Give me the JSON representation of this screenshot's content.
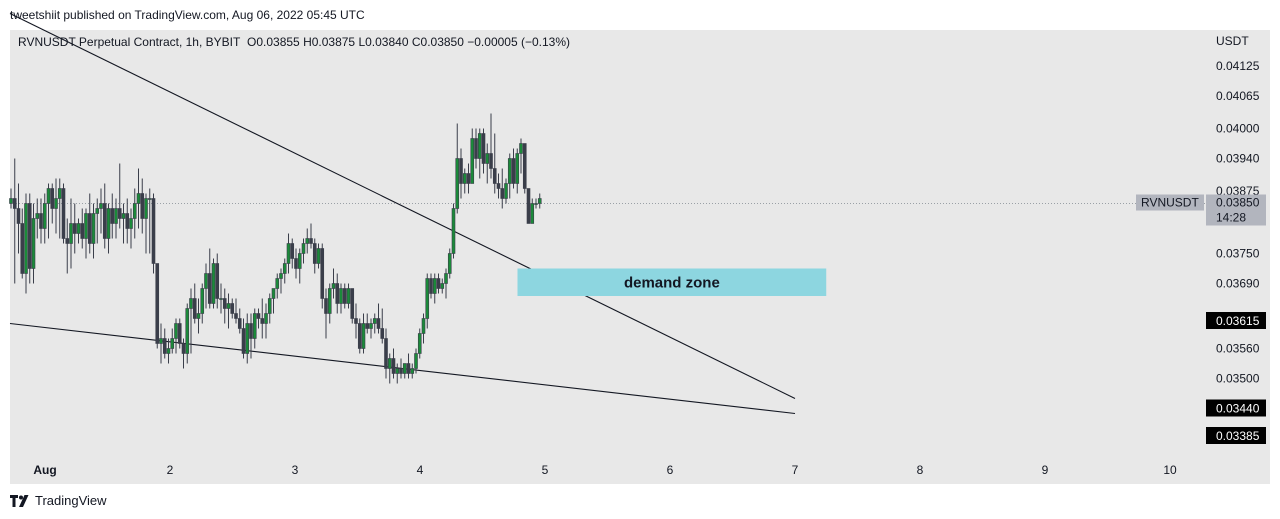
{
  "publish_line": "tweetshiit published on TradingView.com, Aug 06, 2022 05:45 UTC",
  "header": {
    "symbol": "RVNUSDT Perpetual Contract, 1h, BYBIT",
    "open": "O0.03855",
    "high": "H0.03875",
    "low": "L0.03840",
    "close": "C0.03850",
    "change": "−0.00005 (−0.13%)"
  },
  "footer_brand": "TradingView",
  "colors": {
    "plot_bg": "#e8e8e8",
    "up_candle": "#1b8a3a",
    "down_candle": "#3a3e4a",
    "zone_fill": "#8dd6e0",
    "price_tag_bg": "#b2b5be",
    "level_tag_bg": "#000000"
  },
  "chart_data": {
    "type": "candlestick",
    "y_unit": "USDT",
    "y_ticks": [
      "0.04125",
      "0.04065",
      "0.04000",
      "0.03940",
      "0.03875",
      "0.03750",
      "0.03690",
      "0.03560",
      "0.03500"
    ],
    "x_ticks": [
      "Aug",
      "2",
      "3",
      "4",
      "5",
      "6",
      "7",
      "8",
      "9",
      "10"
    ],
    "current_price": {
      "symbol": "RVNUSDT",
      "price": "0.03850",
      "countdown": "14:28"
    },
    "level_labels": [
      "0.03615",
      "0.03440",
      "0.03385"
    ],
    "annotations": [
      {
        "type": "rectangle",
        "text": "demand zone",
        "y_range": [
          0.03665,
          0.0372
        ]
      }
    ],
    "trendlines": [
      {
        "name": "upper-trendline",
        "from": [
          "Aug",
          0.0423
        ],
        "to": [
          "7",
          0.0346
        ]
      },
      {
        "name": "lower-trendline",
        "from": [
          "Aug",
          0.0361
        ],
        "to": [
          "7",
          0.0343
        ]
      }
    ],
    "series": [
      {
        "x": 0.0,
        "o": 0.0385,
        "h": 0.0388,
        "l": 0.0384,
        "c": 0.0386
      },
      {
        "x": 0.03,
        "o": 0.0386,
        "h": 0.0394,
        "l": 0.0369,
        "c": 0.0384
      },
      {
        "x": 0.06,
        "o": 0.0384,
        "h": 0.0389,
        "l": 0.0375,
        "c": 0.0381
      },
      {
        "x": 0.09,
        "o": 0.0381,
        "h": 0.0384,
        "l": 0.037,
        "c": 0.0371
      },
      {
        "x": 0.12,
        "o": 0.0371,
        "h": 0.0387,
        "l": 0.0367,
        "c": 0.0385
      },
      {
        "x": 0.15,
        "o": 0.0385,
        "h": 0.0387,
        "l": 0.0369,
        "c": 0.0372
      },
      {
        "x": 0.18,
        "o": 0.0372,
        "h": 0.0385,
        "l": 0.0369,
        "c": 0.0382
      },
      {
        "x": 0.21,
        "o": 0.0382,
        "h": 0.0386,
        "l": 0.0378,
        "c": 0.0383
      },
      {
        "x": 0.24,
        "o": 0.0383,
        "h": 0.0386,
        "l": 0.0377,
        "c": 0.038
      },
      {
        "x": 0.27,
        "o": 0.038,
        "h": 0.0387,
        "l": 0.0377,
        "c": 0.0385
      },
      {
        "x": 0.3,
        "o": 0.0385,
        "h": 0.0389,
        "l": 0.0378,
        "c": 0.0388
      },
      {
        "x": 0.33,
        "o": 0.0388,
        "h": 0.0389,
        "l": 0.0381,
        "c": 0.0384
      },
      {
        "x": 0.36,
        "o": 0.0384,
        "h": 0.039,
        "l": 0.0379,
        "c": 0.0386
      },
      {
        "x": 0.39,
        "o": 0.0386,
        "h": 0.039,
        "l": 0.0378,
        "c": 0.0388
      },
      {
        "x": 0.42,
        "o": 0.0388,
        "h": 0.0389,
        "l": 0.0377,
        "c": 0.0378
      },
      {
        "x": 0.45,
        "o": 0.0378,
        "h": 0.0382,
        "l": 0.0371,
        "c": 0.0377
      },
      {
        "x": 0.48,
        "o": 0.0377,
        "h": 0.0386,
        "l": 0.0372,
        "c": 0.0381
      },
      {
        "x": 0.51,
        "o": 0.0381,
        "h": 0.0385,
        "l": 0.0375,
        "c": 0.0379
      },
      {
        "x": 0.54,
        "o": 0.0379,
        "h": 0.0382,
        "l": 0.0377,
        "c": 0.0381
      },
      {
        "x": 0.57,
        "o": 0.0381,
        "h": 0.0384,
        "l": 0.0376,
        "c": 0.0378
      },
      {
        "x": 0.6,
        "o": 0.0378,
        "h": 0.0384,
        "l": 0.0374,
        "c": 0.0383
      },
      {
        "x": 0.63,
        "o": 0.0383,
        "h": 0.0387,
        "l": 0.0375,
        "c": 0.0377
      },
      {
        "x": 0.66,
        "o": 0.0377,
        "h": 0.0385,
        "l": 0.0374,
        "c": 0.0383
      },
      {
        "x": 0.69,
        "o": 0.0383,
        "h": 0.0386,
        "l": 0.0377,
        "c": 0.0384
      },
      {
        "x": 0.72,
        "o": 0.0384,
        "h": 0.0388,
        "l": 0.0379,
        "c": 0.0385
      },
      {
        "x": 0.75,
        "o": 0.0385,
        "h": 0.0389,
        "l": 0.0376,
        "c": 0.0378
      },
      {
        "x": 0.78,
        "o": 0.0378,
        "h": 0.0385,
        "l": 0.0375,
        "c": 0.0384
      },
      {
        "x": 0.81,
        "o": 0.0384,
        "h": 0.0387,
        "l": 0.0378,
        "c": 0.0381
      },
      {
        "x": 0.84,
        "o": 0.0381,
        "h": 0.0386,
        "l": 0.0378,
        "c": 0.0384
      },
      {
        "x": 0.87,
        "o": 0.0384,
        "h": 0.0393,
        "l": 0.038,
        "c": 0.0382
      },
      {
        "x": 0.9,
        "o": 0.0382,
        "h": 0.0385,
        "l": 0.0377,
        "c": 0.0383
      },
      {
        "x": 0.93,
        "o": 0.0383,
        "h": 0.0386,
        "l": 0.0377,
        "c": 0.038
      },
      {
        "x": 0.96,
        "o": 0.038,
        "h": 0.0384,
        "l": 0.0376,
        "c": 0.0382
      },
      {
        "x": 0.99,
        "o": 0.0382,
        "h": 0.0388,
        "l": 0.0378,
        "c": 0.0385
      },
      {
        "x": 1.02,
        "o": 0.0385,
        "h": 0.0392,
        "l": 0.038,
        "c": 0.0387
      },
      {
        "x": 1.05,
        "o": 0.0387,
        "h": 0.039,
        "l": 0.0379,
        "c": 0.0382
      },
      {
        "x": 1.08,
        "o": 0.0382,
        "h": 0.0387,
        "l": 0.0375,
        "c": 0.0386
      },
      {
        "x": 1.11,
        "o": 0.0386,
        "h": 0.0388,
        "l": 0.0375,
        "c": 0.0386
      },
      {
        "x": 1.14,
        "o": 0.0386,
        "h": 0.0387,
        "l": 0.0371,
        "c": 0.0373
      },
      {
        "x": 1.17,
        "o": 0.0373,
        "h": 0.0373,
        "l": 0.0356,
        "c": 0.0357
      },
      {
        "x": 1.2,
        "o": 0.0357,
        "h": 0.0361,
        "l": 0.0353,
        "c": 0.0358
      },
      {
        "x": 1.23,
        "o": 0.0358,
        "h": 0.036,
        "l": 0.0354,
        "c": 0.0355
      },
      {
        "x": 1.26,
        "o": 0.0355,
        "h": 0.0358,
        "l": 0.0353,
        "c": 0.0356
      },
      {
        "x": 1.29,
        "o": 0.0356,
        "h": 0.036,
        "l": 0.0355,
        "c": 0.0358
      },
      {
        "x": 1.32,
        "o": 0.0358,
        "h": 0.0362,
        "l": 0.0355,
        "c": 0.0361
      },
      {
        "x": 1.35,
        "o": 0.0361,
        "h": 0.0362,
        "l": 0.0356,
        "c": 0.0357
      },
      {
        "x": 1.38,
        "o": 0.0357,
        "h": 0.0358,
        "l": 0.0352,
        "c": 0.0355
      },
      {
        "x": 1.41,
        "o": 0.0355,
        "h": 0.0365,
        "l": 0.0353,
        "c": 0.0364
      },
      {
        "x": 1.44,
        "o": 0.0364,
        "h": 0.0368,
        "l": 0.0355,
        "c": 0.0366
      },
      {
        "x": 1.47,
        "o": 0.0366,
        "h": 0.0369,
        "l": 0.0361,
        "c": 0.0362
      },
      {
        "x": 1.5,
        "o": 0.0362,
        "h": 0.0366,
        "l": 0.0359,
        "c": 0.0363
      },
      {
        "x": 1.53,
        "o": 0.0363,
        "h": 0.0369,
        "l": 0.0361,
        "c": 0.0368
      },
      {
        "x": 1.56,
        "o": 0.0368,
        "h": 0.0373,
        "l": 0.0364,
        "c": 0.0371
      },
      {
        "x": 1.59,
        "o": 0.0371,
        "h": 0.0376,
        "l": 0.0364,
        "c": 0.0365
      },
      {
        "x": 1.62,
        "o": 0.0365,
        "h": 0.0374,
        "l": 0.0364,
        "c": 0.0373
      },
      {
        "x": 1.65,
        "o": 0.0373,
        "h": 0.0375,
        "l": 0.0364,
        "c": 0.0366
      },
      {
        "x": 1.68,
        "o": 0.0366,
        "h": 0.0369,
        "l": 0.0363,
        "c": 0.0366
      },
      {
        "x": 1.71,
        "o": 0.0366,
        "h": 0.0368,
        "l": 0.0361,
        "c": 0.0364
      },
      {
        "x": 1.74,
        "o": 0.0364,
        "h": 0.0367,
        "l": 0.036,
        "c": 0.0365
      },
      {
        "x": 1.77,
        "o": 0.0365,
        "h": 0.0366,
        "l": 0.0362,
        "c": 0.0363
      },
      {
        "x": 1.8,
        "o": 0.0363,
        "h": 0.0366,
        "l": 0.0361,
        "c": 0.0362
      },
      {
        "x": 1.83,
        "o": 0.0362,
        "h": 0.0364,
        "l": 0.0359,
        "c": 0.036
      },
      {
        "x": 1.86,
        "o": 0.036,
        "h": 0.0362,
        "l": 0.0354,
        "c": 0.0355
      },
      {
        "x": 1.89,
        "o": 0.0355,
        "h": 0.0363,
        "l": 0.0353,
        "c": 0.0361
      },
      {
        "x": 1.92,
        "o": 0.0361,
        "h": 0.0363,
        "l": 0.0354,
        "c": 0.0358
      },
      {
        "x": 1.95,
        "o": 0.0358,
        "h": 0.0364,
        "l": 0.0356,
        "c": 0.0363
      },
      {
        "x": 1.98,
        "o": 0.0363,
        "h": 0.0364,
        "l": 0.036,
        "c": 0.0362
      },
      {
        "x": 2.01,
        "o": 0.0362,
        "h": 0.0366,
        "l": 0.0358,
        "c": 0.0361
      },
      {
        "x": 2.04,
        "o": 0.0361,
        "h": 0.0365,
        "l": 0.0358,
        "c": 0.0363
      },
      {
        "x": 2.07,
        "o": 0.0363,
        "h": 0.0367,
        "l": 0.0361,
        "c": 0.0366
      },
      {
        "x": 2.1,
        "o": 0.0366,
        "h": 0.0368,
        "l": 0.0363,
        "c": 0.0368
      },
      {
        "x": 2.13,
        "o": 0.0368,
        "h": 0.0371,
        "l": 0.0366,
        "c": 0.037
      },
      {
        "x": 2.16,
        "o": 0.037,
        "h": 0.0372,
        "l": 0.0367,
        "c": 0.0371
      },
      {
        "x": 2.19,
        "o": 0.0371,
        "h": 0.0374,
        "l": 0.0369,
        "c": 0.0373
      },
      {
        "x": 2.22,
        "o": 0.0373,
        "h": 0.0379,
        "l": 0.0371,
        "c": 0.0377
      },
      {
        "x": 2.25,
        "o": 0.0377,
        "h": 0.0378,
        "l": 0.0372,
        "c": 0.0374
      },
      {
        "x": 2.28,
        "o": 0.0374,
        "h": 0.0376,
        "l": 0.037,
        "c": 0.0372
      },
      {
        "x": 2.31,
        "o": 0.0372,
        "h": 0.0376,
        "l": 0.0369,
        "c": 0.0375
      },
      {
        "x": 2.34,
        "o": 0.0375,
        "h": 0.0378,
        "l": 0.0373,
        "c": 0.0377
      },
      {
        "x": 2.37,
        "o": 0.0377,
        "h": 0.038,
        "l": 0.0375,
        "c": 0.0378
      },
      {
        "x": 2.4,
        "o": 0.0378,
        "h": 0.0381,
        "l": 0.0376,
        "c": 0.0377
      },
      {
        "x": 2.43,
        "o": 0.0377,
        "h": 0.0378,
        "l": 0.0371,
        "c": 0.0373
      },
      {
        "x": 2.46,
        "o": 0.0373,
        "h": 0.0377,
        "l": 0.0372,
        "c": 0.0376
      },
      {
        "x": 2.49,
        "o": 0.0376,
        "h": 0.0377,
        "l": 0.0364,
        "c": 0.0366
      },
      {
        "x": 2.52,
        "o": 0.0366,
        "h": 0.0368,
        "l": 0.0358,
        "c": 0.0363
      },
      {
        "x": 2.55,
        "o": 0.0363,
        "h": 0.0369,
        "l": 0.0361,
        "c": 0.0368
      },
      {
        "x": 2.58,
        "o": 0.0368,
        "h": 0.0372,
        "l": 0.0366,
        "c": 0.0369
      },
      {
        "x": 2.61,
        "o": 0.0369,
        "h": 0.0371,
        "l": 0.0363,
        "c": 0.0365
      },
      {
        "x": 2.64,
        "o": 0.0365,
        "h": 0.0369,
        "l": 0.0363,
        "c": 0.0368
      },
      {
        "x": 2.67,
        "o": 0.0368,
        "h": 0.0369,
        "l": 0.0364,
        "c": 0.0365
      },
      {
        "x": 2.7,
        "o": 0.0365,
        "h": 0.0369,
        "l": 0.0364,
        "c": 0.0368
      },
      {
        "x": 2.73,
        "o": 0.0368,
        "h": 0.0368,
        "l": 0.0361,
        "c": 0.0362
      },
      {
        "x": 2.76,
        "o": 0.0362,
        "h": 0.0365,
        "l": 0.0358,
        "c": 0.0361
      },
      {
        "x": 2.79,
        "o": 0.0361,
        "h": 0.0362,
        "l": 0.0355,
        "c": 0.0356
      },
      {
        "x": 2.82,
        "o": 0.0356,
        "h": 0.0363,
        "l": 0.0355,
        "c": 0.0361
      },
      {
        "x": 2.85,
        "o": 0.0361,
        "h": 0.0363,
        "l": 0.0359,
        "c": 0.036
      },
      {
        "x": 2.88,
        "o": 0.036,
        "h": 0.0362,
        "l": 0.0358,
        "c": 0.0361
      },
      {
        "x": 2.91,
        "o": 0.0361,
        "h": 0.0363,
        "l": 0.0359,
        "c": 0.0362
      },
      {
        "x": 2.94,
        "o": 0.0362,
        "h": 0.0365,
        "l": 0.0359,
        "c": 0.036
      },
      {
        "x": 2.97,
        "o": 0.036,
        "h": 0.0364,
        "l": 0.0357,
        "c": 0.0358
      },
      {
        "x": 3.0,
        "o": 0.0358,
        "h": 0.036,
        "l": 0.035,
        "c": 0.0352
      },
      {
        "x": 3.03,
        "o": 0.0352,
        "h": 0.0355,
        "l": 0.0349,
        "c": 0.0354
      },
      {
        "x": 3.06,
        "o": 0.0354,
        "h": 0.0356,
        "l": 0.035,
        "c": 0.0351
      },
      {
        "x": 3.09,
        "o": 0.0351,
        "h": 0.0353,
        "l": 0.0349,
        "c": 0.0352
      },
      {
        "x": 3.12,
        "o": 0.0352,
        "h": 0.0354,
        "l": 0.035,
        "c": 0.0351
      },
      {
        "x": 3.15,
        "o": 0.0351,
        "h": 0.0353,
        "l": 0.035,
        "c": 0.0353
      },
      {
        "x": 3.18,
        "o": 0.0353,
        "h": 0.0355,
        "l": 0.035,
        "c": 0.0351
      },
      {
        "x": 3.21,
        "o": 0.0351,
        "h": 0.0353,
        "l": 0.035,
        "c": 0.0352
      },
      {
        "x": 3.24,
        "o": 0.0352,
        "h": 0.0356,
        "l": 0.0351,
        "c": 0.0355
      },
      {
        "x": 3.27,
        "o": 0.0355,
        "h": 0.036,
        "l": 0.0354,
        "c": 0.0359
      },
      {
        "x": 3.3,
        "o": 0.0359,
        "h": 0.0363,
        "l": 0.0357,
        "c": 0.0362
      },
      {
        "x": 3.33,
        "o": 0.0362,
        "h": 0.0371,
        "l": 0.036,
        "c": 0.037
      },
      {
        "x": 3.36,
        "o": 0.037,
        "h": 0.0371,
        "l": 0.0366,
        "c": 0.0367
      },
      {
        "x": 3.39,
        "o": 0.0367,
        "h": 0.0371,
        "l": 0.0365,
        "c": 0.037
      },
      {
        "x": 3.42,
        "o": 0.037,
        "h": 0.0371,
        "l": 0.0367,
        "c": 0.0368
      },
      {
        "x": 3.45,
        "o": 0.0368,
        "h": 0.037,
        "l": 0.0367,
        "c": 0.0369
      },
      {
        "x": 3.48,
        "o": 0.0369,
        "h": 0.0372,
        "l": 0.0366,
        "c": 0.0371
      },
      {
        "x": 3.51,
        "o": 0.0371,
        "h": 0.0376,
        "l": 0.037,
        "c": 0.0375
      },
      {
        "x": 3.54,
        "o": 0.0375,
        "h": 0.0385,
        "l": 0.0374,
        "c": 0.0384
      },
      {
        "x": 3.57,
        "o": 0.0384,
        "h": 0.0401,
        "l": 0.0383,
        "c": 0.0394
      },
      {
        "x": 3.6,
        "o": 0.0394,
        "h": 0.0396,
        "l": 0.0386,
        "c": 0.0389
      },
      {
        "x": 3.63,
        "o": 0.0389,
        "h": 0.0392,
        "l": 0.0387,
        "c": 0.0391
      },
      {
        "x": 3.66,
        "o": 0.0391,
        "h": 0.0393,
        "l": 0.0387,
        "c": 0.0389
      },
      {
        "x": 3.69,
        "o": 0.0389,
        "h": 0.04,
        "l": 0.0389,
        "c": 0.0398
      },
      {
        "x": 3.72,
        "o": 0.0398,
        "h": 0.04,
        "l": 0.0392,
        "c": 0.0394
      },
      {
        "x": 3.75,
        "o": 0.0394,
        "h": 0.04,
        "l": 0.039,
        "c": 0.0399
      },
      {
        "x": 3.78,
        "o": 0.0399,
        "h": 0.04,
        "l": 0.0391,
        "c": 0.0393
      },
      {
        "x": 3.81,
        "o": 0.0393,
        "h": 0.0397,
        "l": 0.0389,
        "c": 0.0395
      },
      {
        "x": 3.84,
        "o": 0.0395,
        "h": 0.0403,
        "l": 0.039,
        "c": 0.0392
      },
      {
        "x": 3.87,
        "o": 0.0392,
        "h": 0.0399,
        "l": 0.0387,
        "c": 0.0389
      },
      {
        "x": 3.9,
        "o": 0.0389,
        "h": 0.0391,
        "l": 0.0386,
        "c": 0.0388
      },
      {
        "x": 3.93,
        "o": 0.0388,
        "h": 0.0392,
        "l": 0.0384,
        "c": 0.0386
      },
      {
        "x": 3.96,
        "o": 0.0386,
        "h": 0.039,
        "l": 0.0385,
        "c": 0.0389
      },
      {
        "x": 3.99,
        "o": 0.0389,
        "h": 0.0395,
        "l": 0.0386,
        "c": 0.0394
      },
      {
        "x": 4.02,
        "o": 0.0394,
        "h": 0.0396,
        "l": 0.0388,
        "c": 0.0389
      },
      {
        "x": 4.05,
        "o": 0.0389,
        "h": 0.0396,
        "l": 0.0387,
        "c": 0.0395
      },
      {
        "x": 4.08,
        "o": 0.0395,
        "h": 0.0398,
        "l": 0.0391,
        "c": 0.0397
      },
      {
        "x": 4.11,
        "o": 0.0397,
        "h": 0.0397,
        "l": 0.0387,
        "c": 0.0388
      },
      {
        "x": 4.14,
        "o": 0.0388,
        "h": 0.0388,
        "l": 0.0381,
        "c": 0.0381
      },
      {
        "x": 4.17,
        "o": 0.0381,
        "h": 0.0386,
        "l": 0.0381,
        "c": 0.0385
      },
      {
        "x": 4.2,
        "o": 0.0385,
        "h": 0.0386,
        "l": 0.0384,
        "c": 0.0385
      },
      {
        "x": 4.23,
        "o": 0.0385,
        "h": 0.0387,
        "l": 0.0384,
        "c": 0.0386
      }
    ]
  }
}
